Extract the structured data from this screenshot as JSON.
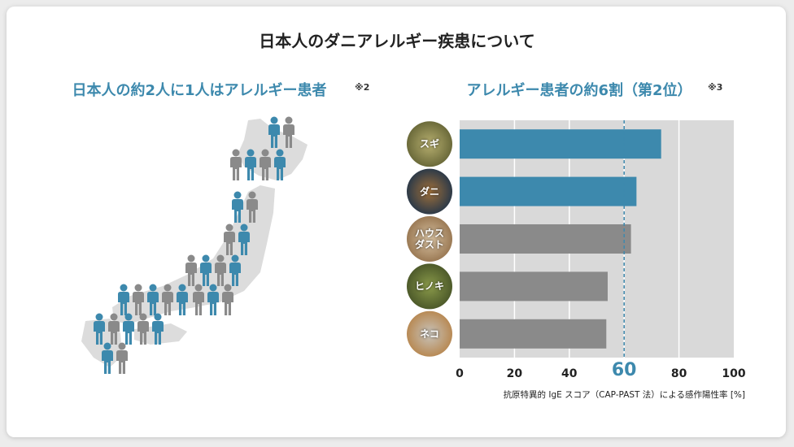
{
  "title": "日本人のダニアレルギー疾患について",
  "left_panel": {
    "subtitle": "日本人の約2人に1人はアレルギー患者",
    "note": "※2"
  },
  "chart_data": {
    "type": "bar",
    "orientation": "horizontal",
    "subtitle": "アレルギー患者の約6割（第2位）",
    "note": "※3",
    "categories": [
      "スギ",
      "ダニ",
      "ハウスダスト",
      "ヒノキ",
      "ネコ"
    ],
    "values": [
      73.5,
      64.5,
      62.5,
      54,
      53.5
    ],
    "colors": [
      "#3d89ad",
      "#3d89ad",
      "#8a8a8a",
      "#8a8a8a",
      "#8a8a8a"
    ],
    "xlim": [
      0,
      100
    ],
    "xticks": [
      0,
      20,
      40,
      60,
      80,
      100
    ],
    "x_label": "抗原特異的 IgE スコア（CAP-PAST 法）による感作陽性率 [%]",
    "reference_line": 60,
    "grid": true
  }
}
